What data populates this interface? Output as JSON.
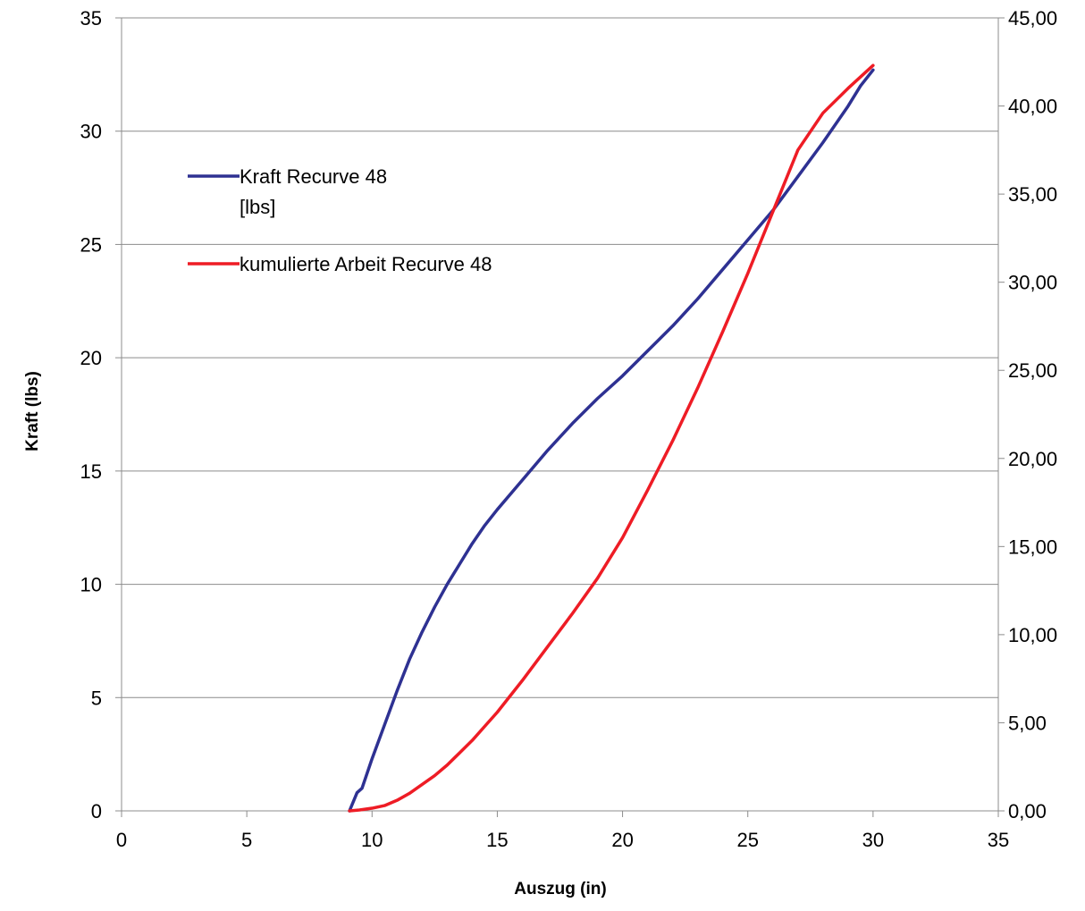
{
  "chart_data": {
    "type": "line",
    "title": "",
    "xlabel": "Auszug (in)",
    "ylabel": "Kraft (lbs)",
    "y2label": "",
    "xlim": [
      0,
      35
    ],
    "ylim": [
      0,
      35
    ],
    "y2lim": [
      0,
      45
    ],
    "x_ticks": [
      "0",
      "5",
      "10",
      "15",
      "20",
      "25",
      "30",
      "35"
    ],
    "y_ticks": [
      "0",
      "5",
      "10",
      "15",
      "20",
      "25",
      "30",
      "35"
    ],
    "y2_ticks": [
      "0,00",
      "5,00",
      "10,00",
      "15,00",
      "20,00",
      "25,00",
      "30,00",
      "35,00",
      "40,00",
      "45,00"
    ],
    "grid": "horizontal",
    "legend_position": "upper-left inside plot",
    "series": [
      {
        "name": "Kraft Recurve 48 [lbs]",
        "legend_lines": [
          "Kraft Recurve 48",
          "[lbs]"
        ],
        "axis": "left",
        "color": "#2E3192",
        "x": [
          9.1,
          9.4,
          9.6,
          10.0,
          10.5,
          11.0,
          11.5,
          12.0,
          12.5,
          13.0,
          13.5,
          14.0,
          14.5,
          15.0,
          16.0,
          17.0,
          18.0,
          19.0,
          20.0,
          21.0,
          22.0,
          23.0,
          24.0,
          25.0,
          26.0,
          27.0,
          28.0,
          28.5,
          29.0,
          29.5,
          30.0
        ],
        "values": [
          0.0,
          0.8,
          1.0,
          2.3,
          3.8,
          5.3,
          6.7,
          7.9,
          9.0,
          10.0,
          10.9,
          11.8,
          12.6,
          13.3,
          14.6,
          15.9,
          17.1,
          18.2,
          19.2,
          20.3,
          21.4,
          22.6,
          23.9,
          25.2,
          26.5,
          28.0,
          29.5,
          30.3,
          31.1,
          32.0,
          32.7
        ]
      },
      {
        "name": "kumulierte Arbeit Recurve 48",
        "legend_lines": [
          "kumulierte Arbeit Recurve 48"
        ],
        "axis": "right",
        "color": "#EE1C25",
        "x": [
          9.1,
          9.5,
          10.0,
          10.5,
          11.0,
          11.5,
          12.0,
          12.5,
          13.0,
          13.5,
          14.0,
          14.5,
          15.0,
          15.5,
          16.0,
          17.0,
          18.0,
          19.0,
          20.0,
          21.0,
          22.0,
          23.0,
          24.0,
          25.0,
          26.0,
          27.0,
          28.0,
          29.0,
          30.0
        ],
        "values": [
          0.0,
          0.05,
          0.15,
          0.3,
          0.6,
          1.0,
          1.5,
          2.0,
          2.6,
          3.3,
          4.0,
          4.8,
          5.6,
          6.5,
          7.4,
          9.3,
          11.2,
          13.2,
          15.5,
          18.2,
          21.0,
          24.0,
          27.2,
          30.5,
          34.0,
          37.5,
          39.6,
          41.0,
          42.3
        ]
      }
    ]
  }
}
